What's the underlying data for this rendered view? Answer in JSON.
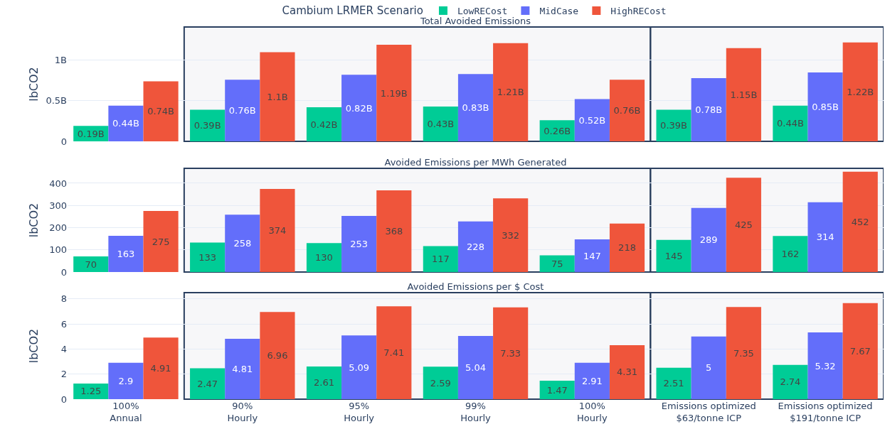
{
  "chart_data": [
    {
      "type": "bar",
      "title": "Total Avoided Emissions",
      "ylabel": "lbCO2",
      "legend_title": "Cambium LRMER Scenario",
      "legend": "top",
      "categories": [
        "100%\nAnnual",
        "90%\nHourly",
        "95%\nHourly",
        "99%\nHourly",
        "100%\nHourly",
        "Emissions optimized\n$63/tonne ICP",
        "Emissions optimized\n$191/tonne ICP"
      ],
      "series": [
        {
          "name": "LowRECost",
          "color": "#00cc96",
          "values": [
            190000000,
            390000000,
            420000000,
            430000000,
            260000000,
            390000000,
            440000000
          ],
          "value_labels": [
            "0.19B",
            "0.39B",
            "0.42B",
            "0.43B",
            "0.26B",
            "0.39B",
            "0.44B"
          ]
        },
        {
          "name": "MidCase",
          "color": "#636efa",
          "values": [
            440000000,
            760000000,
            820000000,
            830000000,
            520000000,
            780000000,
            850000000
          ],
          "value_labels": [
            "0.44B",
            "0.76B",
            "0.82B",
            "0.83B",
            "0.52B",
            "0.78B",
            "0.85B"
          ]
        },
        {
          "name": "HighRECost",
          "color": "#ef553b",
          "values": [
            740000000,
            1100000000,
            1190000000,
            1210000000,
            760000000,
            1150000000,
            1220000000
          ],
          "value_labels": [
            "0.74B",
            "1.1B",
            "1.19B",
            "1.21B",
            "0.76B",
            "1.15B",
            "1.22B"
          ]
        }
      ],
      "ylim": [
        0,
        1410000000
      ],
      "yticks": [
        0,
        {
          "value": 500000000,
          "label": "0.5B"
        },
        {
          "value": 1000000000,
          "label": "1B"
        }
      ],
      "grid": "y",
      "tick_labels": "y",
      "bands": [
        {
          "axis": "x",
          "from": "90%\nHourly",
          "to": "100%\nHourly",
          "color": "#2a3f5f"
        },
        {
          "axis": "x",
          "from": "Emissions optimized\n$63/tonne ICP",
          "to": "Emissions optimized\n$191/tonne ICP",
          "color": "#2a3f5f"
        }
      ]
    },
    {
      "type": "bar",
      "title": "Avoided Emissions per MWh Generated",
      "ylabel": "lbCO2",
      "legend": false,
      "categories": [
        "100%\nAnnual",
        "90%\nHourly",
        "95%\nHourly",
        "99%\nHourly",
        "100%\nHourly",
        "Emissions optimized\n$63/tonne ICP",
        "Emissions optimized\n$191/tonne ICP"
      ],
      "series": [
        {
          "color": "#00cc96",
          "values": [
            70,
            133,
            130,
            117,
            75,
            145,
            162
          ]
        },
        {
          "color": "#636efa",
          "values": [
            163,
            258,
            253,
            228,
            147,
            289,
            314
          ]
        },
        {
          "color": "#ef553b",
          "values": [
            275,
            374,
            368,
            332,
            218,
            425,
            452
          ]
        }
      ],
      "ylim": [
        0,
        467
      ],
      "yticks": [
        0,
        100,
        200,
        300,
        400
      ],
      "grid": "y",
      "tick_labels": "y",
      "data_labels": true,
      "bands": [
        {
          "axis": "x",
          "from": "90%\nHourly",
          "to": "100%\nHourly",
          "color": "#2a3f5f"
        },
        {
          "axis": "x",
          "from": "Emissions optimized\n$63/tonne ICP",
          "to": "Emissions optimized\n$191/tonne ICP",
          "color": "#2a3f5f"
        }
      ]
    },
    {
      "type": "bar",
      "title": "Avoided Emissions per $ Cost",
      "ylabel": "lbCO2",
      "legend": false,
      "categories": [
        "100%\nAnnual",
        "90%\nHourly",
        "95%\nHourly",
        "99%\nHourly",
        "100%\nHourly",
        "Emissions optimized\n$63/tonne ICP",
        "Emissions optimized\n$191/tonne ICP"
      ],
      "series": [
        {
          "color": "#00cc96",
          "values": [
            1.25,
            2.47,
            2.61,
            2.59,
            1.47,
            2.51,
            2.74
          ]
        },
        {
          "color": "#636efa",
          "values": [
            2.9,
            4.81,
            5.09,
            5.04,
            2.91,
            5,
            5.32
          ]
        },
        {
          "color": "#ef553b",
          "values": [
            4.91,
            6.96,
            7.41,
            7.33,
            4.31,
            7.35,
            7.67
          ]
        }
      ],
      "ylim": [
        0,
        8.5
      ],
      "yticks": [
        0,
        2,
        4,
        6,
        8
      ],
      "grid": "y",
      "data_labels": true,
      "bands": [
        {
          "axis": "x",
          "from": "90%\nHourly",
          "to": "100%\nHourly",
          "color": "#2a3f5f"
        },
        {
          "axis": "x",
          "from": "Emissions optimized\n$63/tonne ICP",
          "to": "Emissions optimized\n$191/tonne ICP",
          "color": "#2a3f5f"
        }
      ]
    }
  ]
}
